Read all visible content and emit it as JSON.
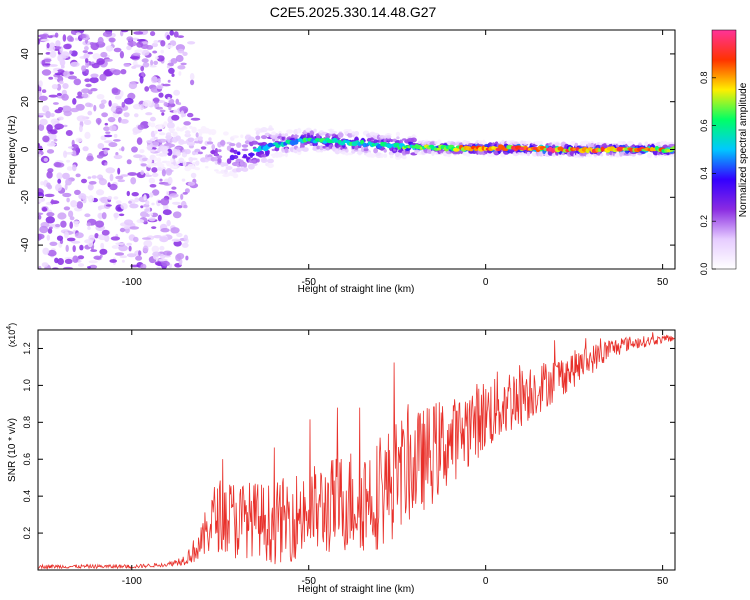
{
  "figure_title": "C2E5.2025.330.14.48.G27",
  "chart_data": [
    {
      "type": "heatmap",
      "title": "C2E5.2025.330.14.48.G27",
      "xlabel": "Height of straight line (km)",
      "ylabel": "Frequency (Hz)",
      "xlim": [
        -126.5,
        53.5
      ],
      "ylim": [
        -50,
        50
      ],
      "x_ticks": [
        -100,
        -50,
        0,
        50
      ],
      "x_tick_labels": [
        "-100",
        "-50",
        "0",
        "50"
      ],
      "y_ticks": [
        -40,
        -20,
        0,
        20,
        40
      ],
      "y_tick_labels": [
        "-40",
        "-20",
        "0",
        "20",
        "40"
      ],
      "colorbar": {
        "label": "Normalized spectral amplitude",
        "range": [
          0,
          1
        ],
        "ticks": [
          0.0,
          0.2,
          0.4,
          0.6,
          0.8
        ],
        "tick_labels": [
          "0.0",
          "0.2",
          "0.4",
          "0.6",
          "0.8"
        ],
        "colormap": [
          "#ffffff",
          "#e6ccff",
          "#8a2be2",
          "#3300ff",
          "#00c8ff",
          "#00ff66",
          "#ffee00",
          "#ff3300",
          "#ff3399"
        ]
      },
      "ridge": {
        "description": "dominant frequency band versus height",
        "x": [
          -90,
          -80,
          -70,
          -60,
          -50,
          -40,
          -30,
          -20,
          -10,
          0,
          10,
          20,
          30,
          40,
          50
        ],
        "center_hz": [
          2,
          0,
          -3,
          2,
          4,
          3,
          2,
          1,
          0.5,
          0.5,
          0.5,
          0,
          0,
          0,
          0
        ],
        "peak_amplitude": [
          0.2,
          0.3,
          0.5,
          0.55,
          0.6,
          0.6,
          0.6,
          0.7,
          0.8,
          0.85,
          0.9,
          0.9,
          0.85,
          0.85,
          0.8
        ]
      },
      "grid": false
    },
    {
      "type": "line",
      "xlabel": "Height of straight line (km)",
      "ylabel": "SNR (10 * v/v)",
      "y_scale_label": "(x10^4)",
      "xlim": [
        -126.5,
        53.5
      ],
      "ylim": [
        0,
        1.3
      ],
      "x_ticks": [
        -100,
        -50,
        0,
        50
      ],
      "x_tick_labels": [
        "-100",
        "-50",
        "0",
        "50"
      ],
      "y_ticks": [
        0.2,
        0.4,
        0.6,
        0.8,
        1.0,
        1.2
      ],
      "y_tick_labels": [
        "0.2",
        "0.4",
        "0.6",
        "0.8",
        "1.0",
        "1.2"
      ],
      "color": "#e8302a",
      "grid": false,
      "series": [
        {
          "x": [
            -126.5,
            -110,
            -100,
            -90,
            -85,
            -80,
            -78,
            -75,
            -72,
            -70,
            -65,
            -60,
            -55,
            -50,
            -45,
            -40,
            -35,
            -30,
            -26,
            -25,
            -20,
            -18,
            -15,
            -12,
            -10,
            -8,
            -5,
            0,
            5,
            8,
            10,
            15,
            20,
            25,
            30,
            35,
            40,
            45,
            50,
            53.5
          ],
          "values": [
            0.02,
            0.02,
            0.02,
            0.03,
            0.06,
            0.16,
            0.28,
            0.32,
            0.3,
            0.29,
            0.3,
            0.27,
            0.31,
            0.34,
            0.36,
            0.4,
            0.42,
            0.44,
            0.52,
            0.55,
            0.6,
            0.62,
            0.66,
            0.7,
            0.72,
            0.74,
            0.8,
            0.86,
            0.92,
            0.95,
            0.97,
            1.0,
            1.05,
            1.1,
            1.15,
            1.2,
            1.23,
            1.24,
            1.25,
            1.26
          ],
          "noise_amplitude": [
            0.01,
            0.01,
            0.01,
            0.01,
            0.03,
            0.1,
            0.18,
            0.2,
            0.22,
            0.22,
            0.2,
            0.22,
            0.24,
            0.25,
            0.26,
            0.28,
            0.3,
            0.3,
            0.32,
            0.3,
            0.3,
            0.28,
            0.28,
            0.26,
            0.24,
            0.22,
            0.22,
            0.2,
            0.2,
            0.18,
            0.18,
            0.14,
            0.12,
            0.1,
            0.08,
            0.06,
            0.04,
            0.03,
            0.02,
            0.02
          ]
        }
      ]
    }
  ]
}
